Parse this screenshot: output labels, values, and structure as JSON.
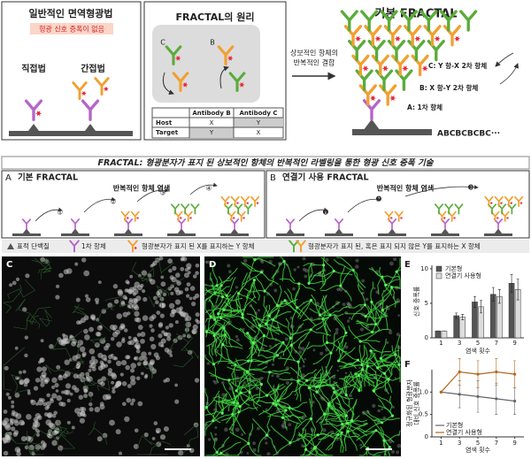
{
  "top_left": {
    "title": "일반적인 면역형광법",
    "badge": "형광 신호 증폭이 없음",
    "direct": "직접법",
    "indirect": "간접법"
  },
  "principle": {
    "title": "FRACTAL의 원리",
    "labels": [
      "C",
      "B"
    ],
    "table": {
      "header": [
        "Antibody B",
        "Antibody C"
      ],
      "rows": [
        [
          "Host",
          "X",
          "Y"
        ],
        [
          "Target",
          "Y",
          "X"
        ]
      ]
    }
  },
  "basic": {
    "title": "기본 FRACTAL",
    "arrow_text": [
      "상보적인 항체의",
      "반복적인 결합"
    ],
    "labels": [
      "C: Y 항-X 2차 항체",
      "B: X 항-Y 2차 항체",
      "A: 1차 항체"
    ],
    "sequence": "ABCBCBCBC···"
  },
  "banner": {
    "prefix": "FRACTAL:",
    "text": "형광분자가 표지 된 상보적인 항체의 반복적인 라벨링을 통한 형광 신호 증폭 기술"
  },
  "panel_a": {
    "letter": "A",
    "title": "기본 FRACTAL",
    "caption": "반복적인 항체 염색",
    "steps": [
      "①",
      "②",
      "③",
      "④"
    ]
  },
  "panel_b": {
    "letter": "B",
    "title": "연결기 사용 FRACTAL",
    "caption": "반복적인 항체 염색",
    "steps": [
      "❶",
      "❷",
      "❸"
    ]
  },
  "legend": [
    "표적 단백질",
    "1차 항체",
    "형광분자가 표지 된 X를 표지하는 Y 항체",
    "형광분자가 표지 된, 혹은 표지 되지 않은 Y를 표지하는 X 항체"
  ],
  "panel_labels": [
    "C",
    "D",
    "E",
    "F"
  ],
  "chart_data": [
    {
      "type": "bar",
      "x_label": "염색 횟수",
      "y_label": "신호 증폭률",
      "categories": [
        "1",
        "3",
        "5",
        "7",
        "9"
      ],
      "series": [
        {
          "name": "기본형",
          "color": "#555555",
          "values": [
            1,
            3.2,
            5.2,
            6.3,
            7.9
          ],
          "errors": [
            0,
            0.4,
            0.8,
            1.0,
            1.3
          ]
        },
        {
          "name": "연결기 사용형",
          "color": "#dddddd",
          "values": [
            1,
            3,
            4.5,
            6,
            7
          ],
          "errors": [
            0,
            0.4,
            0.9,
            1.0,
            1.5
          ]
        }
      ],
      "ylim": [
        0,
        10.5
      ],
      "yticks": [
        0,
        5,
        10
      ],
      "legend": "upper left"
    },
    {
      "type": "line",
      "x_label": "염색 횟수",
      "y_label": [
        "정규화된 형광분자",
        "대비 신호 증폭률"
      ],
      "x": [
        1,
        3,
        5,
        7,
        9
      ],
      "xlim": [
        0,
        10
      ],
      "xticks": [
        1,
        3,
        5,
        7,
        9
      ],
      "series": [
        {
          "name": "기본형",
          "color": "#666666",
          "values": [
            1,
            0.95,
            0.9,
            0.85,
            0.8
          ],
          "errors": [
            0,
            0.3,
            0.35,
            0.35,
            0.3
          ]
        },
        {
          "name": "연결기 사용형",
          "color": "#b5651d",
          "values": [
            1,
            1.45,
            1.4,
            1.45,
            1.4
          ],
          "errors": [
            0,
            0.3,
            0.3,
            0.3,
            0.3
          ]
        }
      ],
      "ylim": [
        0,
        1.5
      ],
      "yticks": [
        0,
        0.5,
        {
          "value": 1,
          "label": "1.0"
        }
      ],
      "legend": "lower left"
    }
  ]
}
